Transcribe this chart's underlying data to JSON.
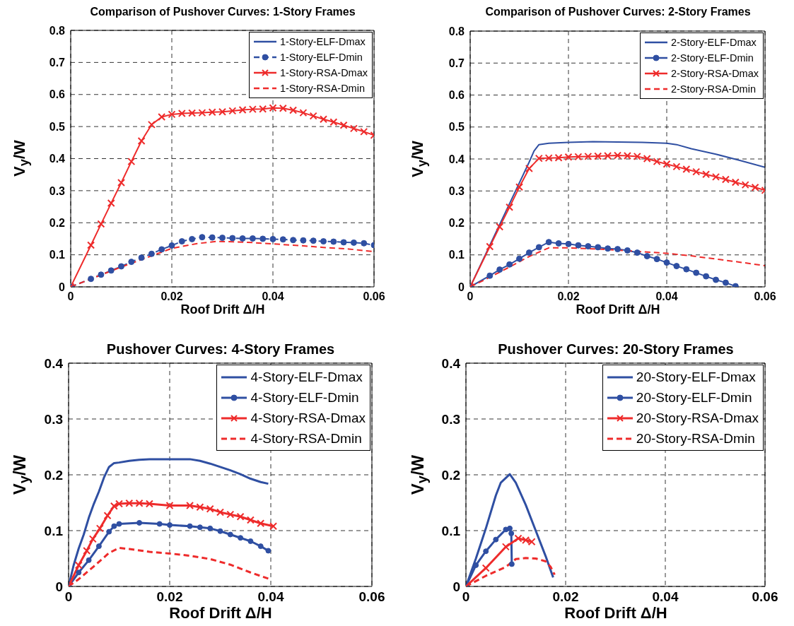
{
  "chart_data": [
    {
      "type": "line",
      "title": "Comparison of Pushover Curves: 1-Story Frames",
      "xlabel": "Roof Drift Δ/H",
      "ylabel": "V$_{y}$/W",
      "xlim": [
        0,
        0.06
      ],
      "xticks": [
        0,
        0.02,
        0.04,
        0.06
      ],
      "ylim": [
        0,
        0.8
      ],
      "yticks": [
        0,
        0.1,
        0.2,
        0.3,
        0.4,
        0.5,
        0.6,
        0.7,
        0.8
      ],
      "grid": true,
      "legend": "top right",
      "series": [
        {
          "name": "1-Story-ELF-Dmax",
          "color": "#2f4fa2",
          "marker": "none",
          "line_style": "solid"
        },
        {
          "name": "1-Story-ELF-Dmin",
          "color": "#2f4fa2",
          "marker": "circle",
          "line_style": "dashed",
          "x": [
            0,
            0.004,
            0.006,
            0.008,
            0.01,
            0.012,
            0.014,
            0.016,
            0.018,
            0.02,
            0.022,
            0.024,
            0.026,
            0.028,
            0.03,
            0.032,
            0.034,
            0.036,
            0.038,
            0.04,
            0.042,
            0.044,
            0.046,
            0.048,
            0.05,
            0.052,
            0.054,
            0.056,
            0.058,
            0.06
          ],
          "values": [
            0,
            0.025,
            0.038,
            0.051,
            0.064,
            0.078,
            0.091,
            0.103,
            0.117,
            0.129,
            0.142,
            0.149,
            0.155,
            0.154,
            0.153,
            0.152,
            0.151,
            0.151,
            0.15,
            0.149,
            0.148,
            0.146,
            0.145,
            0.144,
            0.142,
            0.141,
            0.139,
            0.138,
            0.136,
            0.13
          ]
        },
        {
          "name": "1-Story-RSA-Dmax",
          "color": "#ee2b2b",
          "marker": "cross",
          "line_style": "solid",
          "x": [
            0,
            0.004,
            0.006,
            0.008,
            0.01,
            0.012,
            0.014,
            0.016,
            0.018,
            0.02,
            0.022,
            0.024,
            0.026,
            0.028,
            0.03,
            0.032,
            0.034,
            0.036,
            0.038,
            0.04,
            0.042,
            0.044,
            0.046,
            0.048,
            0.05,
            0.052,
            0.054,
            0.056,
            0.058,
            0.06
          ],
          "values": [
            0,
            0.13,
            0.196,
            0.261,
            0.325,
            0.391,
            0.455,
            0.506,
            0.53,
            0.538,
            0.541,
            0.542,
            0.543,
            0.545,
            0.546,
            0.549,
            0.552,
            0.554,
            0.555,
            0.558,
            0.557,
            0.551,
            0.543,
            0.533,
            0.523,
            0.514,
            0.504,
            0.494,
            0.484,
            0.473
          ]
        },
        {
          "name": "1-Story-RSA-Dmin",
          "color": "#ee2b2b",
          "marker": "none",
          "line_style": "dashed",
          "x": [
            0,
            0.01,
            0.02,
            0.025,
            0.029,
            0.035,
            0.04,
            0.045,
            0.05,
            0.055,
            0.06
          ],
          "values": [
            0,
            0.062,
            0.12,
            0.135,
            0.142,
            0.139,
            0.134,
            0.129,
            0.123,
            0.118,
            0.11
          ]
        }
      ]
    },
    {
      "type": "line",
      "title": "Comparison of Pushover Curves: 2-Story Frames",
      "xlabel": "Roof Drift Δ/H",
      "ylabel": "V$_{y}$/W",
      "xlim": [
        0,
        0.06
      ],
      "xticks": [
        0,
        0.02,
        0.04,
        0.06
      ],
      "ylim": [
        0,
        0.8
      ],
      "yticks": [
        0,
        0.1,
        0.2,
        0.3,
        0.4,
        0.5,
        0.6,
        0.7,
        0.8
      ],
      "grid": true,
      "legend": "top right",
      "series": [
        {
          "name": "2-Story-ELF-Dmax",
          "color": "#2f4fa2",
          "marker": "none",
          "line_style": "solid",
          "x": [
            0,
            0.004,
            0.008,
            0.012,
            0.013,
            0.014,
            0.016,
            0.02,
            0.025,
            0.03,
            0.035,
            0.04,
            0.042,
            0.045,
            0.05,
            0.055,
            0.06
          ],
          "values": [
            0,
            0.13,
            0.26,
            0.39,
            0.425,
            0.445,
            0.449,
            0.452,
            0.454,
            0.453,
            0.452,
            0.449,
            0.445,
            0.432,
            0.415,
            0.395,
            0.374
          ]
        },
        {
          "name": "2-Story-ELF-Dmin",
          "color": "#2f4fa2",
          "marker": "circle",
          "line_style": "solid",
          "x": [
            0,
            0.004,
            0.006,
            0.008,
            0.01,
            0.012,
            0.014,
            0.016,
            0.018,
            0.02,
            0.022,
            0.024,
            0.026,
            0.028,
            0.03,
            0.032,
            0.034,
            0.036,
            0.038,
            0.04,
            0.042,
            0.044,
            0.046,
            0.048,
            0.05,
            0.052,
            0.054
          ],
          "values": [
            0,
            0.035,
            0.054,
            0.07,
            0.088,
            0.107,
            0.124,
            0.14,
            0.136,
            0.134,
            0.13,
            0.127,
            0.124,
            0.12,
            0.118,
            0.114,
            0.107,
            0.096,
            0.087,
            0.076,
            0.065,
            0.055,
            0.044,
            0.033,
            0.022,
            0.013,
            0.002
          ]
        },
        {
          "name": "2-Story-RSA-Dmax",
          "color": "#ee2b2b",
          "marker": "cross",
          "line_style": "solid",
          "x": [
            0,
            0.004,
            0.006,
            0.008,
            0.01,
            0.012,
            0.014,
            0.016,
            0.018,
            0.02,
            0.022,
            0.024,
            0.026,
            0.028,
            0.03,
            0.032,
            0.034,
            0.036,
            0.038,
            0.04,
            0.042,
            0.044,
            0.046,
            0.048,
            0.05,
            0.052,
            0.054,
            0.056,
            0.058,
            0.06
          ],
          "values": [
            0,
            0.126,
            0.188,
            0.249,
            0.312,
            0.37,
            0.402,
            0.403,
            0.404,
            0.406,
            0.407,
            0.408,
            0.409,
            0.41,
            0.411,
            0.41,
            0.408,
            0.401,
            0.392,
            0.384,
            0.376,
            0.368,
            0.36,
            0.352,
            0.344,
            0.336,
            0.327,
            0.319,
            0.311,
            0.302
          ]
        },
        {
          "name": "2-Story-RSA-Dmin",
          "color": "#ee2b2b",
          "marker": "none",
          "line_style": "dashed",
          "x": [
            0,
            0.004,
            0.008,
            0.012,
            0.016,
            0.02,
            0.025,
            0.03,
            0.035,
            0.04,
            0.045,
            0.05,
            0.055,
            0.06
          ],
          "values": [
            0,
            0.03,
            0.062,
            0.095,
            0.122,
            0.122,
            0.119,
            0.115,
            0.11,
            0.105,
            0.097,
            0.087,
            0.077,
            0.066
          ]
        }
      ]
    },
    {
      "type": "line",
      "title": "Pushover Curves: 4-Story Frames",
      "xlabel": "Roof Drift Δ/H",
      "ylabel": "V$_{y}$/W",
      "xlim": [
        0,
        0.06
      ],
      "xticks": [
        0,
        0.02,
        0.04,
        0.06
      ],
      "ylim": [
        0,
        0.4
      ],
      "yticks": [
        0,
        0.1,
        0.2,
        0.3,
        0.4
      ],
      "grid": true,
      "legend": "top right",
      "series": [
        {
          "name": "4-Story-ELF-Dmax",
          "color": "#2f4fa2",
          "marker": "none",
          "line_style": "solid",
          "x": [
            0,
            0.001,
            0.002,
            0.003,
            0.004,
            0.005,
            0.006,
            0.007,
            0.008,
            0.009,
            0.01,
            0.012,
            0.014,
            0.016,
            0.02,
            0.024,
            0.026,
            0.028,
            0.03,
            0.032,
            0.034,
            0.036,
            0.038,
            0.0395
          ],
          "values": [
            0,
            0.038,
            0.068,
            0.093,
            0.123,
            0.148,
            0.17,
            0.195,
            0.214,
            0.221,
            0.222,
            0.225,
            0.227,
            0.228,
            0.228,
            0.228,
            0.225,
            0.22,
            0.214,
            0.208,
            0.201,
            0.193,
            0.187,
            0.184
          ]
        },
        {
          "name": "4-Story-ELF-Dmin",
          "color": "#2f4fa2",
          "marker": "circle",
          "line_style": "solid",
          "x": [
            0,
            0.002,
            0.004,
            0.006,
            0.008,
            0.009,
            0.01,
            0.014,
            0.018,
            0.02,
            0.024,
            0.026,
            0.028,
            0.03,
            0.032,
            0.034,
            0.036,
            0.038,
            0.0395
          ],
          "values": [
            0,
            0.025,
            0.047,
            0.072,
            0.098,
            0.108,
            0.112,
            0.114,
            0.112,
            0.11,
            0.108,
            0.106,
            0.104,
            0.099,
            0.093,
            0.087,
            0.081,
            0.072,
            0.064
          ]
        },
        {
          "name": "4-Story-RSA-Dmax",
          "color": "#ee2b2b",
          "marker": "cross",
          "line_style": "solid",
          "x": [
            0,
            0.002,
            0.0036,
            0.0048,
            0.0062,
            0.0077,
            0.009,
            0.01,
            0.012,
            0.014,
            0.016,
            0.02,
            0.024,
            0.026,
            0.028,
            0.03,
            0.032,
            0.034,
            0.036,
            0.038,
            0.0405
          ],
          "values": [
            0,
            0.038,
            0.064,
            0.085,
            0.104,
            0.127,
            0.144,
            0.148,
            0.149,
            0.149,
            0.148,
            0.145,
            0.145,
            0.142,
            0.139,
            0.133,
            0.129,
            0.125,
            0.119,
            0.113,
            0.108
          ]
        },
        {
          "name": "4-Story-RSA-Dmin",
          "color": "#ee2b2b",
          "marker": "none",
          "line_style": "dashed",
          "x": [
            0,
            0.002,
            0.005,
            0.008,
            0.01,
            0.012,
            0.016,
            0.02,
            0.024,
            0.028,
            0.032,
            0.036,
            0.0395
          ],
          "values": [
            0,
            0.013,
            0.036,
            0.06,
            0.069,
            0.067,
            0.062,
            0.059,
            0.055,
            0.049,
            0.039,
            0.025,
            0.014
          ]
        }
      ]
    },
    {
      "type": "line",
      "title": "Pushover Curves: 20-Story Frames",
      "xlabel": "Roof Drift Δ/H",
      "ylabel": "V$_{y}$/W",
      "xlim": [
        0,
        0.06
      ],
      "xticks": [
        0,
        0.02,
        0.04,
        0.06
      ],
      "ylim": [
        0,
        0.4
      ],
      "yticks": [
        0,
        0.1,
        0.2,
        0.3,
        0.4
      ],
      "grid": true,
      "legend": "top right",
      "series": [
        {
          "name": "20-Story-ELF-Dmax",
          "color": "#2f4fa2",
          "marker": "none",
          "line_style": "solid",
          "x": [
            0,
            0.002,
            0.004,
            0.006,
            0.007,
            0.0088,
            0.01,
            0.012,
            0.014,
            0.016,
            0.0175
          ],
          "values": [
            0,
            0.05,
            0.104,
            0.163,
            0.186,
            0.201,
            0.186,
            0.146,
            0.1,
            0.054,
            0.016
          ]
        },
        {
          "name": "20-Story-ELF-Dmin",
          "color": "#2f4fa2",
          "marker": "circle",
          "line_style": "solid",
          "x": [
            0,
            0.002,
            0.004,
            0.006,
            0.008,
            0.0088,
            0.0091,
            0.0092
          ],
          "values": [
            0,
            0.038,
            0.063,
            0.084,
            0.102,
            0.104,
            0.095,
            0.04
          ]
        },
        {
          "name": "20-Story-RSA-Dmax",
          "color": "#ee2b2b",
          "marker": "cross",
          "line_style": "solid",
          "x": [
            0,
            0.004,
            0.008,
            0.0105,
            0.012,
            0.0132
          ],
          "values": [
            0,
            0.033,
            0.071,
            0.086,
            0.083,
            0.08
          ]
        },
        {
          "name": "20-Story-RSA-Dmin",
          "color": "#ee2b2b",
          "marker": "none",
          "line_style": "dashed",
          "x": [
            0,
            0.004,
            0.008,
            0.01,
            0.012,
            0.014,
            0.016,
            0.017,
            0.0178
          ],
          "values": [
            0,
            0.019,
            0.035,
            0.049,
            0.051,
            0.05,
            0.045,
            0.035,
            0.021
          ]
        }
      ]
    }
  ]
}
